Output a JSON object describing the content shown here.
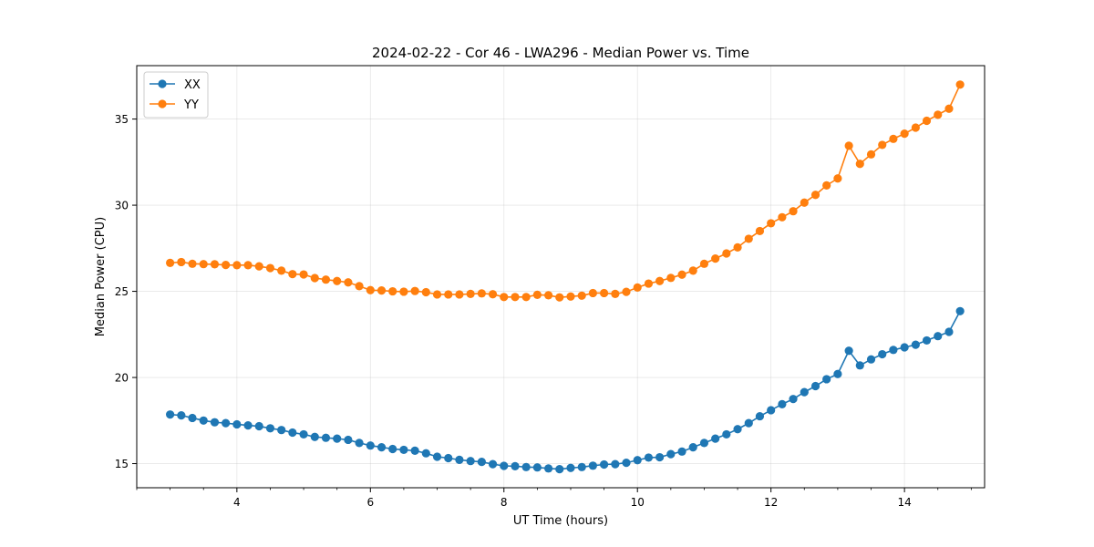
{
  "chart_data": {
    "type": "line",
    "title": "2024-02-22 - Cor 46 - LWA296 - Median Power vs. Time",
    "xlabel": "UT Time (hours)",
    "ylabel": "Median Power (CPU)",
    "xlim": [
      2.5,
      15.2
    ],
    "ylim": [
      13.6,
      38.1
    ],
    "xticks": [
      4,
      6,
      8,
      10,
      12,
      14
    ],
    "xtick_labels": [
      "4",
      "6",
      "8",
      "10",
      "12",
      "14"
    ],
    "yticks": [
      15,
      20,
      25,
      30,
      35
    ],
    "ytick_labels": [
      "15",
      "20",
      "25",
      "30",
      "35"
    ],
    "grid": true,
    "legend_position": "upper-left",
    "x": [
      3.0,
      3.167,
      3.333,
      3.5,
      3.667,
      3.833,
      4.0,
      4.167,
      4.333,
      4.5,
      4.667,
      4.833,
      5.0,
      5.167,
      5.333,
      5.5,
      5.667,
      5.833,
      6.0,
      6.167,
      6.333,
      6.5,
      6.667,
      6.833,
      7.0,
      7.167,
      7.333,
      7.5,
      7.667,
      7.833,
      8.0,
      8.167,
      8.333,
      8.5,
      8.667,
      8.833,
      9.0,
      9.167,
      9.333,
      9.5,
      9.667,
      9.833,
      10.0,
      10.167,
      10.333,
      10.5,
      10.667,
      10.833,
      11.0,
      11.167,
      11.333,
      11.5,
      11.667,
      11.833,
      12.0,
      12.167,
      12.333,
      12.5,
      12.667,
      12.833,
      13.0,
      13.167,
      13.333,
      13.5,
      13.667,
      13.833,
      14.0,
      14.167,
      14.333,
      14.5,
      14.667,
      14.833
    ],
    "series": [
      {
        "name": "XX",
        "color": "#1f77b4",
        "values": [
          17.85,
          17.8,
          17.65,
          17.5,
          17.4,
          17.35,
          17.28,
          17.22,
          17.17,
          17.05,
          16.95,
          16.8,
          16.7,
          16.55,
          16.5,
          16.45,
          16.38,
          16.2,
          16.05,
          15.95,
          15.85,
          15.8,
          15.75,
          15.6,
          15.4,
          15.32,
          15.22,
          15.15,
          15.1,
          14.97,
          14.87,
          14.85,
          14.8,
          14.78,
          14.72,
          14.68,
          14.75,
          14.8,
          14.88,
          14.95,
          14.97,
          15.05,
          15.2,
          15.35,
          15.37,
          15.55,
          15.7,
          15.95,
          16.2,
          16.45,
          16.7,
          17.0,
          17.35,
          17.75,
          18.1,
          18.45,
          18.75,
          19.15,
          19.5,
          19.9,
          20.2,
          21.55,
          20.7,
          21.05,
          21.35,
          21.6,
          21.75,
          21.9,
          22.15,
          22.4,
          22.65,
          23.85
        ]
      },
      {
        "name": "YY",
        "color": "#ff7f0e",
        "values": [
          26.65,
          26.7,
          26.6,
          26.58,
          26.57,
          26.53,
          26.52,
          26.52,
          26.45,
          26.35,
          26.2,
          26.0,
          25.98,
          25.77,
          25.68,
          25.6,
          25.52,
          25.3,
          25.07,
          25.05,
          25.0,
          24.98,
          25.02,
          24.95,
          24.82,
          24.82,
          24.82,
          24.85,
          24.88,
          24.83,
          24.67,
          24.67,
          24.67,
          24.8,
          24.77,
          24.65,
          24.7,
          24.75,
          24.9,
          24.9,
          24.85,
          24.97,
          25.22,
          25.45,
          25.6,
          25.78,
          25.97,
          26.2,
          26.6,
          26.9,
          27.2,
          27.55,
          28.05,
          28.5,
          28.95,
          29.3,
          29.65,
          30.15,
          30.6,
          31.15,
          31.55,
          33.45,
          32.4,
          32.95,
          33.5,
          33.85,
          34.15,
          34.5,
          34.9,
          35.25,
          35.6,
          37.0
        ]
      }
    ]
  }
}
